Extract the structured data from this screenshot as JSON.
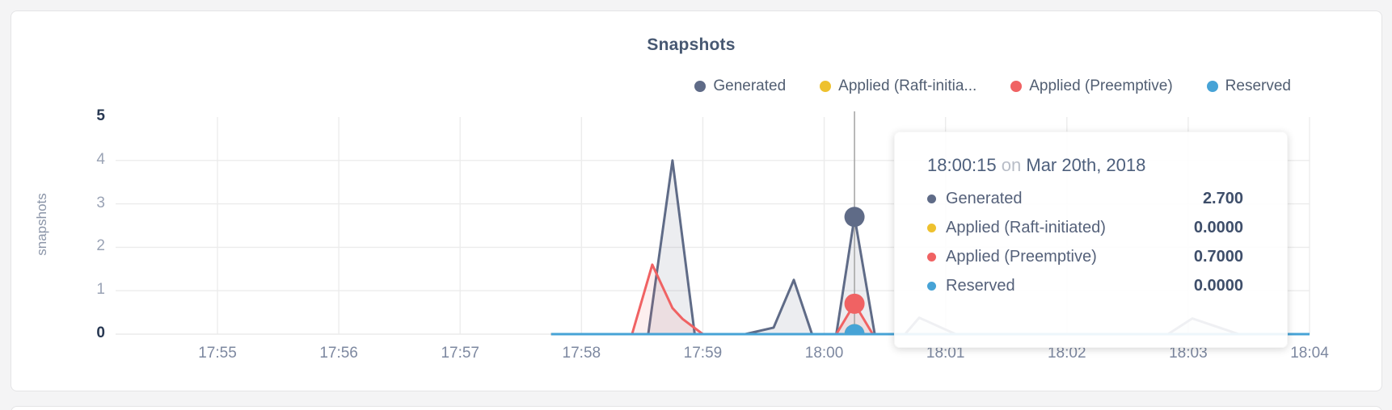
{
  "chart_data": {
    "type": "area",
    "title": "Snapshots",
    "ylabel": "snapshots",
    "ylim": [
      0,
      5
    ],
    "y_ticks": [
      0,
      1,
      2,
      3,
      4,
      5
    ],
    "y_ticks_emphasized": [
      0,
      5
    ],
    "x_ticks": [
      "17:55",
      "17:56",
      "17:57",
      "17:58",
      "17:59",
      "18:00",
      "18:01",
      "18:02",
      "18:03",
      "18:04"
    ],
    "x_range": [
      "17:55:00",
      "18:04:00"
    ],
    "grid": true,
    "legend_position": "top-right",
    "series": [
      {
        "name": "Generated",
        "legend_label": "Generated",
        "color": "#5f6b87",
        "fill": "rgba(95,107,135,0.12)",
        "points": [
          [
            "17:57:45",
            0
          ],
          [
            "17:58:33",
            0
          ],
          [
            "17:58:45",
            4.0
          ],
          [
            "17:58:56",
            0
          ],
          [
            "17:59:21",
            0
          ],
          [
            "17:59:35",
            0.15
          ],
          [
            "17:59:45",
            1.25
          ],
          [
            "17:59:54",
            0
          ],
          [
            "18:00:06",
            0
          ],
          [
            "18:00:15",
            2.7
          ],
          [
            "18:00:25",
            0
          ],
          [
            "18:00:40",
            0
          ],
          [
            "18:00:47",
            0.38
          ],
          [
            "18:01:05",
            0
          ],
          [
            "18:02:50",
            0
          ],
          [
            "18:03:02",
            0.36
          ],
          [
            "18:03:25",
            0
          ],
          [
            "18:04:00",
            0
          ]
        ]
      },
      {
        "name": "Applied (Raft-initiated)",
        "legend_label": "Applied (Raft-initia...",
        "color": "#eec12e",
        "fill": null,
        "points": [
          [
            "17:57:45",
            0
          ],
          [
            "18:04:00",
            0
          ]
        ]
      },
      {
        "name": "Applied (Preemptive)",
        "legend_label": "Applied (Preemptive)",
        "color": "#f06263",
        "fill": "rgba(240,98,99,0.10)",
        "points": [
          [
            "17:57:45",
            0
          ],
          [
            "17:58:25",
            0
          ],
          [
            "17:58:35",
            1.6
          ],
          [
            "17:58:45",
            0.6
          ],
          [
            "17:58:50",
            0.35
          ],
          [
            "17:59:00",
            0
          ],
          [
            "18:00:06",
            0
          ],
          [
            "18:00:15",
            0.7
          ],
          [
            "18:00:24",
            0
          ],
          [
            "18:04:00",
            0
          ]
        ]
      },
      {
        "name": "Reserved",
        "legend_label": "Reserved",
        "color": "#47a3d6",
        "fill": null,
        "points": [
          [
            "17:57:45",
            0
          ],
          [
            "18:04:00",
            0
          ]
        ]
      }
    ],
    "hover": {
      "time": "18:00:15",
      "values": [
        2.7,
        0.0,
        0.7,
        0.0
      ]
    }
  },
  "tooltip": {
    "time": "18:00:15",
    "connector": "on",
    "date": "Mar 20th, 2018",
    "rows": [
      {
        "label": "Generated",
        "value": "2.700",
        "color": "#5f6b87"
      },
      {
        "label": "Applied (Raft-initiated)",
        "value": "0.0000",
        "color": "#eec12e"
      },
      {
        "label": "Applied (Preemptive)",
        "value": "0.7000",
        "color": "#f06263"
      },
      {
        "label": "Reserved",
        "value": "0.0000",
        "color": "#47a3d6"
      }
    ]
  },
  "colors": {
    "grid": "#ececec",
    "hover_line": "#a8a8a8",
    "axis_text": "#7d88a0"
  }
}
